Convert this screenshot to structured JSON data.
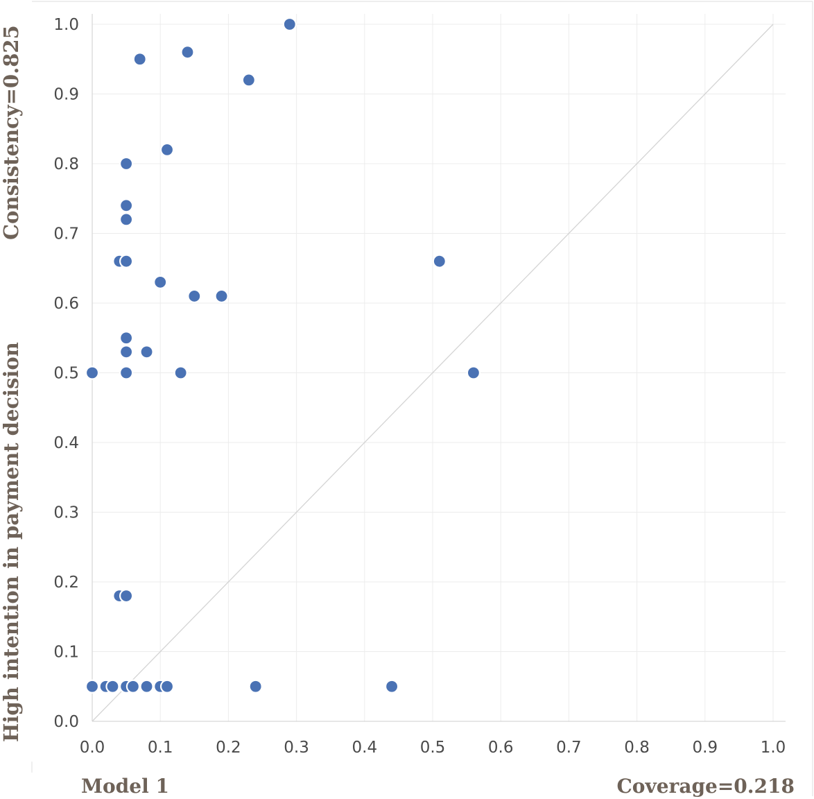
{
  "chart_data": {
    "type": "scatter",
    "ylabel": "High intention in payment decision",
    "consistency_label": "Consistency=0.825",
    "coverage_label": "Coverage=0.218",
    "model_label": "Model 1",
    "xlim": [
      0,
      1
    ],
    "ylim": [
      0,
      1
    ],
    "x_ticks": [
      "0.0",
      "0.1",
      "0.2",
      "0.3",
      "0.4",
      "0.5",
      "0.6",
      "0.7",
      "0.8",
      "0.9",
      "1.0"
    ],
    "y_ticks": [
      "0.0",
      "0.1",
      "0.2",
      "0.3",
      "0.4",
      "0.5",
      "0.6",
      "0.7",
      "0.8",
      "0.9",
      "1.0"
    ],
    "grid": true,
    "diagonal_reference_line": true,
    "point_color": "#4a72b4",
    "points": [
      {
        "x": 0.29,
        "y": 1.0
      },
      {
        "x": 0.14,
        "y": 0.96
      },
      {
        "x": 0.07,
        "y": 0.95
      },
      {
        "x": 0.23,
        "y": 0.92
      },
      {
        "x": 0.11,
        "y": 0.82
      },
      {
        "x": 0.05,
        "y": 0.8
      },
      {
        "x": 0.05,
        "y": 0.74
      },
      {
        "x": 0.05,
        "y": 0.72
      },
      {
        "x": 0.04,
        "y": 0.66
      },
      {
        "x": 0.05,
        "y": 0.66
      },
      {
        "x": 0.51,
        "y": 0.66
      },
      {
        "x": 0.1,
        "y": 0.63
      },
      {
        "x": 0.15,
        "y": 0.61
      },
      {
        "x": 0.19,
        "y": 0.61
      },
      {
        "x": 0.05,
        "y": 0.55
      },
      {
        "x": 0.05,
        "y": 0.53
      },
      {
        "x": 0.08,
        "y": 0.53
      },
      {
        "x": 0.0,
        "y": 0.5
      },
      {
        "x": 0.05,
        "y": 0.5
      },
      {
        "x": 0.13,
        "y": 0.5
      },
      {
        "x": 0.56,
        "y": 0.5
      },
      {
        "x": 0.04,
        "y": 0.18
      },
      {
        "x": 0.05,
        "y": 0.18
      },
      {
        "x": 0.0,
        "y": 0.05
      },
      {
        "x": 0.02,
        "y": 0.05
      },
      {
        "x": 0.03,
        "y": 0.05
      },
      {
        "x": 0.05,
        "y": 0.05
      },
      {
        "x": 0.06,
        "y": 0.05
      },
      {
        "x": 0.08,
        "y": 0.05
      },
      {
        "x": 0.1,
        "y": 0.05
      },
      {
        "x": 0.11,
        "y": 0.05
      },
      {
        "x": 0.24,
        "y": 0.05
      },
      {
        "x": 0.44,
        "y": 0.05
      }
    ]
  }
}
